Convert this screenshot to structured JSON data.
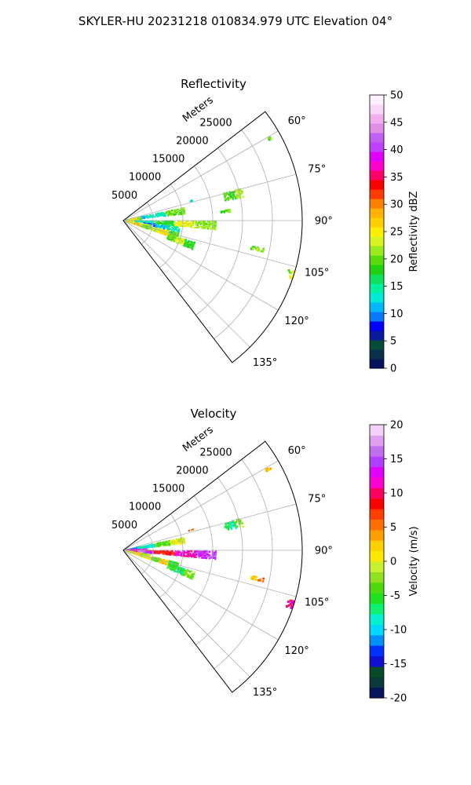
{
  "figure": {
    "suptitle": "SKYLER-HU  20231218  010834.979 UTC Elevation 04°"
  },
  "colors": {
    "grid": "#b0b0b0",
    "frame": "#000000",
    "text": "#000000"
  },
  "chart_data": [
    {
      "type": "heatmap",
      "subtype": "polar-sector-ppi",
      "title": "Reflectivity",
      "radial_label": "Meters",
      "radial_ticks": [
        5000,
        10000,
        15000,
        20000,
        25000
      ],
      "rlim": [
        0,
        30000
      ],
      "theta_ticks_deg": [
        60,
        75,
        90,
        105,
        120,
        135
      ],
      "theta_range_deg": [
        52.5,
        142.5
      ],
      "grid": true,
      "colorbar": {
        "label": "Reflectivity dBZ",
        "range": [
          0,
          50
        ],
        "ticks": [
          0,
          5,
          10,
          15,
          20,
          25,
          30,
          35,
          40,
          45,
          50
        ],
        "stops": [
          "#08145a",
          "#0a2f4a",
          "#0a4a3a",
          "#0a1a99",
          "#0000ff",
          "#0a77ff",
          "#00b8ff",
          "#00e8d8",
          "#00f0a0",
          "#10e060",
          "#22d010",
          "#58dc10",
          "#9aec20",
          "#d8f420",
          "#fff000",
          "#ffd000",
          "#ffb000",
          "#ff8000",
          "#ff3a00",
          "#ff0000",
          "#ff0066",
          "#ff00cc",
          "#e000ff",
          "#c040ff",
          "#c060f0",
          "#e08ee8",
          "#f0b0f0",
          "#fad6f8",
          "#fff0ff"
        ]
      },
      "echo_regions": [
        {
          "theta": 81,
          "r0": 600,
          "r1": 10500,
          "w": 5.5,
          "levels": [
            11,
            14,
            20
          ],
          "density": 0.55
        },
        {
          "theta": 86,
          "r0": 500,
          "r1": 3200,
          "w": 13,
          "levels": [
            23,
            26,
            21
          ],
          "density": 0.85
        },
        {
          "theta": 93,
          "r0": 2000,
          "r1": 15500,
          "w": 5,
          "levels": [
            14,
            18,
            24,
            21
          ],
          "density": 0.55
        },
        {
          "theta": 99,
          "r0": 3500,
          "r1": 9500,
          "w": 5,
          "levels": [
            9,
            12,
            14
          ],
          "density": 0.45
        },
        {
          "theta": 104,
          "r0": 500,
          "r1": 4500,
          "w": 9,
          "levels": [
            24,
            27,
            22
          ],
          "density": 0.8
        },
        {
          "theta": 106,
          "r0": 3500,
          "r1": 9500,
          "w": 6,
          "levels": [
            20,
            23,
            26,
            19
          ],
          "density": 0.7
        },
        {
          "theta": 110,
          "r0": 8000,
          "r1": 12500,
          "w": 6,
          "levels": [
            20,
            23,
            18
          ],
          "density": 0.6
        },
        {
          "theta": 77,
          "r0": 17500,
          "r1": 20500,
          "w": 4,
          "levels": [
            20,
            18,
            22
          ],
          "density": 0.55
        },
        {
          "theta": 85,
          "r0": 16500,
          "r1": 18000,
          "w": 1.5,
          "levels": [
            19,
            21
          ],
          "density": 0.5
        },
        {
          "theta": 61,
          "r0": 27500,
          "r1": 28500,
          "w": 1,
          "levels": [
            20
          ],
          "density": 0.5
        },
        {
          "theta": 102,
          "r0": 22000,
          "r1": 24000,
          "w": 1.2,
          "levels": [
            20,
            22
          ],
          "density": 0.5
        },
        {
          "theta": 108,
          "r0": 29000,
          "r1": 30000,
          "w": 2.5,
          "levels": [
            20,
            24
          ],
          "density": 0.6
        },
        {
          "theta": 74,
          "r0": 11500,
          "r1": 12500,
          "w": 1.2,
          "levels": [
            14
          ],
          "density": 0.4
        }
      ]
    },
    {
      "type": "heatmap",
      "subtype": "polar-sector-ppi",
      "title": "Velocity",
      "radial_label": "Meters",
      "radial_ticks": [
        5000,
        10000,
        15000,
        20000,
        25000
      ],
      "rlim": [
        0,
        30000
      ],
      "theta_ticks_deg": [
        60,
        75,
        90,
        105,
        120,
        135
      ],
      "theta_range_deg": [
        52.5,
        142.5
      ],
      "grid": true,
      "colorbar": {
        "label": "Velocity (m/s)",
        "range": [
          -20,
          20
        ],
        "ticks": [
          -20,
          -15,
          -10,
          -5,
          0,
          5,
          10,
          15,
          20
        ],
        "stops": [
          "#08145a",
          "#0a3a3a",
          "#0a4a2a",
          "#1010d0",
          "#0030ff",
          "#0090ff",
          "#00d8ff",
          "#00f0d0",
          "#10f070",
          "#20e020",
          "#50d810",
          "#90e020",
          "#c8f030",
          "#ffe800",
          "#ffd000",
          "#ffa000",
          "#ff7000",
          "#ff4000",
          "#ff0000",
          "#ff0060",
          "#ff00d0",
          "#e000ff",
          "#b040ff",
          "#c070f0",
          "#e0a0f0",
          "#f4d0f8"
        ]
      },
      "echo_regions": [
        {
          "theta": 81,
          "r0": 600,
          "r1": 10500,
          "w": 5.5,
          "levels": [
            -11,
            -8,
            -4,
            0
          ],
          "density": 0.55
        },
        {
          "theta": 86,
          "r0": 500,
          "r1": 3200,
          "w": 10,
          "levels": [
            -10,
            -12,
            -8
          ],
          "density": 0.8
        },
        {
          "theta": 89,
          "r0": 500,
          "r1": 4000,
          "w": 5,
          "levels": [
            11,
            13,
            15
          ],
          "density": 0.8
        },
        {
          "theta": 93,
          "r0": 2000,
          "r1": 15500,
          "w": 5,
          "levels": [
            10,
            8,
            12,
            14
          ],
          "density": 0.6
        },
        {
          "theta": 95,
          "r0": 1000,
          "r1": 5000,
          "w": 4,
          "levels": [
            12,
            16,
            14
          ],
          "density": 0.7
        },
        {
          "theta": 104,
          "r0": 500,
          "r1": 4500,
          "w": 9,
          "levels": [
            0,
            2,
            -2
          ],
          "density": 0.8
        },
        {
          "theta": 106,
          "r0": 3500,
          "r1": 9500,
          "w": 6,
          "levels": [
            0,
            -3,
            2,
            -5
          ],
          "density": 0.7
        },
        {
          "theta": 110,
          "r0": 8000,
          "r1": 12500,
          "w": 6,
          "levels": [
            -5,
            -7,
            -3
          ],
          "density": 0.6
        },
        {
          "theta": 77,
          "r0": 17500,
          "r1": 20500,
          "w": 4,
          "levels": [
            -5,
            -7,
            -3
          ],
          "density": 0.55
        },
        {
          "theta": 61,
          "r0": 27500,
          "r1": 28500,
          "w": 1,
          "levels": [
            2
          ],
          "density": 0.5
        },
        {
          "theta": 102,
          "r0": 22000,
          "r1": 24000,
          "w": 1.2,
          "levels": [
            3,
            5
          ],
          "density": 0.5
        },
        {
          "theta": 108,
          "r0": 29000,
          "r1": 30000,
          "w": 2.5,
          "levels": [
            9,
            11
          ],
          "density": 0.6
        },
        {
          "theta": 74,
          "r0": 11500,
          "r1": 12500,
          "w": 1.2,
          "levels": [
            6
          ],
          "density": 0.4
        }
      ]
    }
  ]
}
